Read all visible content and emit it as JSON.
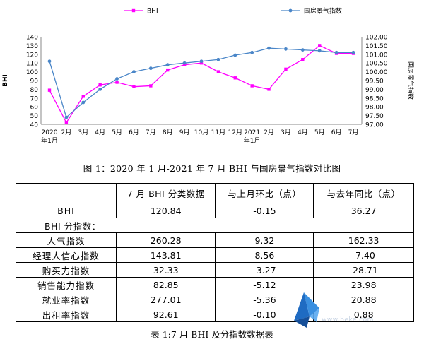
{
  "chart_data": {
    "type": "line",
    "categories": [
      [
        "2020",
        "年1月"
      ],
      [
        "2月"
      ],
      [
        "3月"
      ],
      [
        "4月"
      ],
      [
        "5月"
      ],
      [
        "6月"
      ],
      [
        "7月"
      ],
      [
        "8月"
      ],
      [
        "9月"
      ],
      [
        "10月"
      ],
      [
        "11月"
      ],
      [
        "12月"
      ],
      [
        "2021",
        "年1月"
      ],
      [
        "2月"
      ],
      [
        "3月"
      ],
      [
        "4月"
      ],
      [
        "5月"
      ],
      [
        "6月"
      ],
      [
        "7月"
      ]
    ],
    "series": [
      {
        "name": "BHI",
        "axis": "left",
        "color": "#ff00ff",
        "marker": "square",
        "values": [
          79,
          42,
          72,
          85,
          88,
          83,
          84,
          102,
          108,
          110,
          100,
          93,
          84,
          80,
          103,
          114,
          130,
          121,
          121
        ]
      },
      {
        "name": "国房景气指数",
        "axis": "right",
        "color": "#4a86c8",
        "marker": "circle",
        "values": [
          100.6,
          97.4,
          98.25,
          99.0,
          99.6,
          100.0,
          100.2,
          100.4,
          100.5,
          100.6,
          100.7,
          100.95,
          101.1,
          101.35,
          101.3,
          101.25,
          101.2,
          101.1,
          101.1
        ]
      }
    ],
    "y_left": {
      "label": "BHI",
      "min": 40,
      "max": 140,
      "step": 10
    },
    "y_right": {
      "label": "国房景气指数",
      "min": 97.0,
      "max": 102.0,
      "step": 0.5
    },
    "legend_position": "top",
    "grid": false
  },
  "figure_caption": "图 1：2020 年 1 月-2021 年 7 月 BHI 与国房景气指数对比图",
  "table": {
    "headers": [
      "",
      "7 月 BHI 分类数据",
      "与上月环比（点）",
      "与去年同比（点）"
    ],
    "rows": [
      {
        "label": "BHI",
        "values": [
          "120.84",
          "-0.15",
          "36.27"
        ]
      },
      {
        "group": "BHI 分指数："
      },
      {
        "label": "人气指数",
        "values": [
          "260.28",
          "9.32",
          "162.33"
        ]
      },
      {
        "label": "经理人信心指数",
        "values": [
          "143.81",
          "8.56",
          "-7.40"
        ]
      },
      {
        "label": "购买力指数",
        "values": [
          "32.33",
          "-3.27",
          "-28.71"
        ]
      },
      {
        "label": "销售能力指数",
        "values": [
          "82.85",
          "-5.12",
          "23.98"
        ]
      },
      {
        "label": "就业率指数",
        "values": [
          "277.01",
          "-5.36",
          "20.88"
        ]
      },
      {
        "label": "出租率指数",
        "values": [
          "92.61",
          "-0.10",
          "0.88"
        ]
      }
    ]
  },
  "table_caption": "表 1:7 月 BHI 及分指数数据表",
  "watermark": {
    "text": "www.beke.com"
  }
}
